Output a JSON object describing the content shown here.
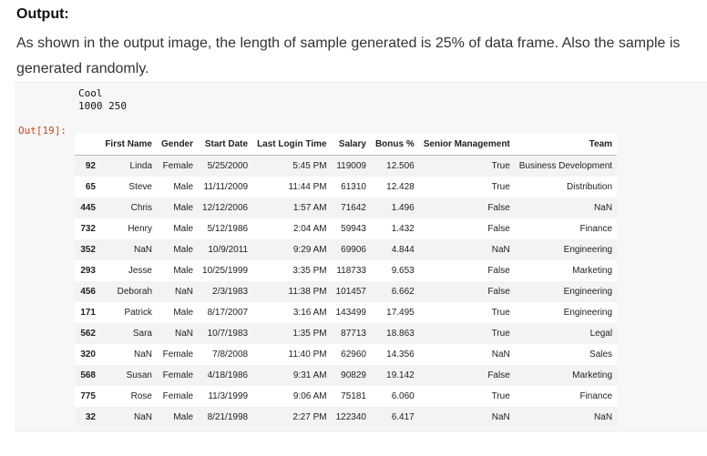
{
  "heading": "Output:",
  "paragraph": "As shown in the output image, the length of sample generated is 25% of data frame. Also the sample is generated randomly.",
  "stdout_lines": [
    "Cool",
    "1000 250"
  ],
  "out_prompt": "Out[19]:",
  "table": {
    "columns": [
      "",
      "First Name",
      "Gender",
      "Start Date",
      "Last Login Time",
      "Salary",
      "Bonus %",
      "Senior Management",
      "Team"
    ],
    "rows": [
      [
        "92",
        "Linda",
        "Female",
        "5/25/2000",
        "5:45 PM",
        "119009",
        "12.506",
        "True",
        "Business Development"
      ],
      [
        "65",
        "Steve",
        "Male",
        "11/11/2009",
        "11:44 PM",
        "61310",
        "12.428",
        "True",
        "Distribution"
      ],
      [
        "445",
        "Chris",
        "Male",
        "12/12/2006",
        "1:57 AM",
        "71642",
        "1.496",
        "False",
        "NaN"
      ],
      [
        "732",
        "Henry",
        "Male",
        "5/12/1986",
        "2:04 AM",
        "59943",
        "1.432",
        "False",
        "Finance"
      ],
      [
        "352",
        "NaN",
        "Male",
        "10/9/2011",
        "9:29 AM",
        "69906",
        "4.844",
        "NaN",
        "Engineering"
      ],
      [
        "293",
        "Jesse",
        "Male",
        "10/25/1999",
        "3:35 PM",
        "118733",
        "9.653",
        "False",
        "Marketing"
      ],
      [
        "456",
        "Deborah",
        "NaN",
        "2/3/1983",
        "11:38 PM",
        "101457",
        "6.662",
        "False",
        "Engineering"
      ],
      [
        "171",
        "Patrick",
        "Male",
        "8/17/2007",
        "3:16 AM",
        "143499",
        "17.495",
        "True",
        "Engineering"
      ],
      [
        "562",
        "Sara",
        "NaN",
        "10/7/1983",
        "1:35 PM",
        "87713",
        "18.863",
        "True",
        "Legal"
      ],
      [
        "320",
        "NaN",
        "Female",
        "7/8/2008",
        "11:40 PM",
        "62960",
        "14.356",
        "NaN",
        "Sales"
      ],
      [
        "568",
        "Susan",
        "Female",
        "4/18/1986",
        "9:31 AM",
        "90829",
        "19.142",
        "False",
        "Marketing"
      ],
      [
        "775",
        "Rose",
        "Female",
        "11/3/1999",
        "9:06 AM",
        "75181",
        "6.060",
        "True",
        "Finance"
      ],
      [
        "32",
        "NaN",
        "Male",
        "8/21/1998",
        "2:27 PM",
        "122340",
        "6.417",
        "NaN",
        "NaN"
      ]
    ]
  }
}
